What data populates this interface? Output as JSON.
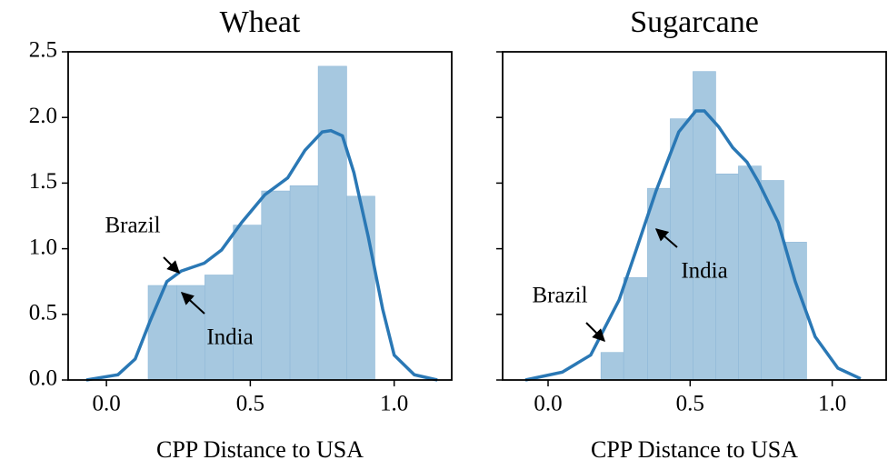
{
  "chart_data": [
    {
      "type": "histogram",
      "title": "Wheat",
      "x_label": "CPP Distance to USA",
      "color": "#a6c8e0",
      "line_color": "#2a78b5",
      "bins": [
        0.145,
        0.244,
        0.342,
        0.441,
        0.539,
        0.638,
        0.736,
        0.835,
        0.933
      ],
      "values": [
        0.72,
        0.72,
        0.8,
        1.18,
        1.44,
        1.48,
        2.39,
        1.4
      ],
      "line": {
        "x": [
          -0.07,
          0.04,
          0.1,
          0.15,
          0.21,
          0.26,
          0.34,
          0.4,
          0.47,
          0.55,
          0.63,
          0.69,
          0.75,
          0.78,
          0.82,
          0.86,
          0.91,
          0.96,
          1.0,
          1.07,
          1.15
        ],
        "y": [
          0,
          0.04,
          0.16,
          0.44,
          0.75,
          0.83,
          0.89,
          0.99,
          1.2,
          1.41,
          1.54,
          1.75,
          1.89,
          1.9,
          1.86,
          1.58,
          1.09,
          0.54,
          0.19,
          0.04,
          0
        ]
      },
      "annotations": [
        "Brazil",
        "India"
      ],
      "xlim": [
        -0.133,
        1.2
      ],
      "ylim": [
        0,
        2.5
      ],
      "xticks": [
        {
          "value": 0,
          "label": "0.0"
        },
        {
          "value": 0.5,
          "label": "0.5"
        },
        {
          "value": 1,
          "label": "1.0"
        }
      ],
      "yticks": [
        {
          "value": 0,
          "label": "0.0"
        },
        {
          "value": 0.5,
          "label": "0.5"
        },
        {
          "value": 1,
          "label": "1.0"
        },
        {
          "value": 1.5,
          "label": "1.5"
        },
        {
          "value": 2,
          "label": "2.0"
        },
        {
          "value": 2.5,
          "label": "2.5"
        }
      ]
    },
    {
      "type": "histogram",
      "title": "Sugarcane",
      "x_label": "CPP Distance to USA",
      "color": "#a6c8e0",
      "line_color": "#2a78b5",
      "bins": [
        0.186,
        0.266,
        0.35,
        0.43,
        0.51,
        0.59,
        0.67,
        0.75,
        0.83,
        0.91
      ],
      "values": [
        0.21,
        0.78,
        1.46,
        1.99,
        2.35,
        1.57,
        1.63,
        1.52,
        1.05
      ],
      "line": {
        "x": [
          -0.08,
          0.05,
          0.15,
          0.25,
          0.31,
          0.38,
          0.46,
          0.52,
          0.55,
          0.6,
          0.65,
          0.7,
          0.74,
          0.81,
          0.87,
          0.94,
          1.02,
          1.1
        ],
        "y": [
          0,
          0.06,
          0.19,
          0.61,
          0.99,
          1.44,
          1.89,
          2.05,
          2.05,
          1.93,
          1.77,
          1.66,
          1.51,
          1.2,
          0.75,
          0.33,
          0.09,
          0.01
        ]
      },
      "annotations": [
        "Brazil",
        "India"
      ],
      "xlim": [
        -0.16,
        1.19
      ],
      "ylim": [
        0,
        2.5
      ],
      "xticks": [
        {
          "value": 0,
          "label": "0.0"
        },
        {
          "value": 0.5,
          "label": "0.5"
        },
        {
          "value": 1,
          "label": "1.0"
        }
      ],
      "yticks": [
        {
          "value": 0,
          "label": "0.0"
        },
        {
          "value": 0.5,
          "label": "0.5"
        },
        {
          "value": 1,
          "label": "1.0"
        },
        {
          "value": 1.5,
          "label": "1.5"
        },
        {
          "value": 2,
          "label": "2.0"
        },
        {
          "value": 2.5,
          "label": "2.5"
        }
      ]
    }
  ]
}
